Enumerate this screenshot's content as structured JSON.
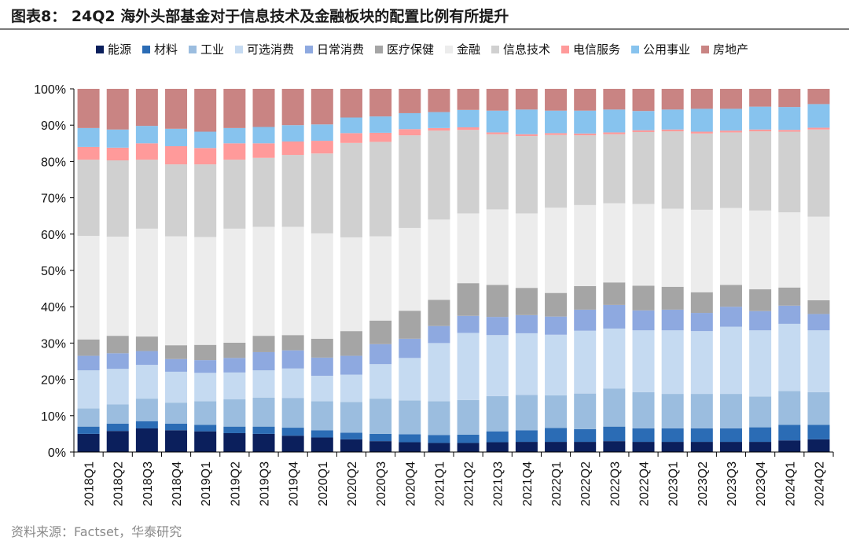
{
  "title": "图表8： 24Q2 海外头部基金对于信息技术及金融板块的配置比例有所提升",
  "source": "资料来源：Factset，华泰研究",
  "chart_data": {
    "type": "bar",
    "stacked": true,
    "ylim": [
      0,
      1
    ],
    "yticks": [
      "0%",
      "10%",
      "20%",
      "30%",
      "40%",
      "50%",
      "60%",
      "70%",
      "80%",
      "90%",
      "100%"
    ],
    "legend_position": "top",
    "grid": false,
    "categories": [
      "2018Q1",
      "2018Q2",
      "2018Q3",
      "2018Q4",
      "2019Q1",
      "2019Q2",
      "2019Q3",
      "2019Q4",
      "2020Q1",
      "2020Q2",
      "2020Q3",
      "2020Q4",
      "2021Q1",
      "2021Q2",
      "2021Q3",
      "2021Q4",
      "2022Q1",
      "2022Q2",
      "2022Q3",
      "2022Q4",
      "2023Q1",
      "2023Q2",
      "2023Q3",
      "2023Q4",
      "2024Q1",
      "2024Q2"
    ],
    "series": [
      {
        "name": "能源",
        "color": "#0b1f5c",
        "values": [
          0.05,
          0.058,
          0.065,
          0.06,
          0.057,
          0.052,
          0.05,
          0.045,
          0.04,
          0.035,
          0.03,
          0.027,
          0.025,
          0.025,
          0.027,
          0.028,
          0.028,
          0.028,
          0.03,
          0.028,
          0.028,
          0.028,
          0.028,
          0.028,
          0.032,
          0.035
        ]
      },
      {
        "name": "材料",
        "color": "#2b6cb5",
        "values": [
          0.02,
          0.02,
          0.02,
          0.018,
          0.018,
          0.018,
          0.02,
          0.022,
          0.02,
          0.018,
          0.02,
          0.022,
          0.022,
          0.023,
          0.03,
          0.032,
          0.038,
          0.035,
          0.04,
          0.037,
          0.037,
          0.037,
          0.037,
          0.04,
          0.043,
          0.04
        ]
      },
      {
        "name": "工业",
        "color": "#9bbddf",
        "values": [
          0.05,
          0.053,
          0.062,
          0.058,
          0.065,
          0.075,
          0.08,
          0.082,
          0.08,
          0.085,
          0.097,
          0.093,
          0.093,
          0.095,
          0.097,
          0.097,
          0.09,
          0.098,
          0.105,
          0.1,
          0.095,
          0.095,
          0.095,
          0.085,
          0.093,
          0.09
        ]
      },
      {
        "name": "可选消费",
        "color": "#c5daf1",
        "values": [
          0.105,
          0.098,
          0.093,
          0.085,
          0.078,
          0.074,
          0.075,
          0.081,
          0.07,
          0.075,
          0.095,
          0.117,
          0.16,
          0.185,
          0.168,
          0.17,
          0.167,
          0.173,
          0.165,
          0.17,
          0.175,
          0.173,
          0.185,
          0.182,
          0.185,
          0.17
        ]
      },
      {
        "name": "日常消费",
        "color": "#8ea9e0",
        "values": [
          0.04,
          0.043,
          0.038,
          0.035,
          0.035,
          0.04,
          0.05,
          0.05,
          0.05,
          0.052,
          0.055,
          0.053,
          0.047,
          0.047,
          0.05,
          0.05,
          0.05,
          0.058,
          0.065,
          0.055,
          0.057,
          0.05,
          0.055,
          0.053,
          0.05,
          0.045
        ]
      },
      {
        "name": "医疗保健",
        "color": "#a5a5a5",
        "values": [
          0.045,
          0.048,
          0.04,
          0.038,
          0.042,
          0.042,
          0.045,
          0.042,
          0.052,
          0.068,
          0.065,
          0.077,
          0.072,
          0.09,
          0.088,
          0.075,
          0.065,
          0.065,
          0.062,
          0.068,
          0.063,
          0.057,
          0.06,
          0.06,
          0.05,
          0.038
        ]
      },
      {
        "name": "金融",
        "color": "#ececec",
        "values": [
          0.285,
          0.273,
          0.297,
          0.3,
          0.297,
          0.314,
          0.3,
          0.298,
          0.29,
          0.258,
          0.232,
          0.228,
          0.221,
          0.192,
          0.208,
          0.205,
          0.235,
          0.223,
          0.218,
          0.225,
          0.215,
          0.227,
          0.212,
          0.217,
          0.207,
          0.23
        ]
      },
      {
        "name": "信息技术",
        "color": "#d0d0d0",
        "values": [
          0.21,
          0.21,
          0.19,
          0.198,
          0.2,
          0.19,
          0.19,
          0.198,
          0.22,
          0.26,
          0.26,
          0.255,
          0.245,
          0.23,
          0.207,
          0.213,
          0.2,
          0.192,
          0.19,
          0.198,
          0.213,
          0.21,
          0.208,
          0.218,
          0.222,
          0.24
        ]
      },
      {
        "name": "电信服务",
        "color": "#ff9a9a",
        "values": [
          0.035,
          0.035,
          0.045,
          0.05,
          0.045,
          0.045,
          0.04,
          0.037,
          0.035,
          0.027,
          0.025,
          0.017,
          0.007,
          0.007,
          0.005,
          0.005,
          0.005,
          0.005,
          0.005,
          0.005,
          0.005,
          0.005,
          0.005,
          0.005,
          0.005,
          0.005
        ]
      },
      {
        "name": "公用事业",
        "color": "#87c3ee",
        "values": [
          0.052,
          0.05,
          0.048,
          0.048,
          0.045,
          0.042,
          0.045,
          0.045,
          0.045,
          0.043,
          0.045,
          0.044,
          0.044,
          0.048,
          0.06,
          0.068,
          0.062,
          0.063,
          0.063,
          0.053,
          0.055,
          0.063,
          0.06,
          0.063,
          0.063,
          0.065
        ]
      },
      {
        "name": "房地产",
        "color": "#c98483",
        "values": [
          0.108,
          0.112,
          0.102,
          0.11,
          0.118,
          0.108,
          0.105,
          0.1,
          0.098,
          0.079,
          0.076,
          0.067,
          0.064,
          0.058,
          0.06,
          0.057,
          0.06,
          0.06,
          0.057,
          0.061,
          0.057,
          0.055,
          0.055,
          0.049,
          0.05,
          0.042
        ]
      }
    ]
  }
}
